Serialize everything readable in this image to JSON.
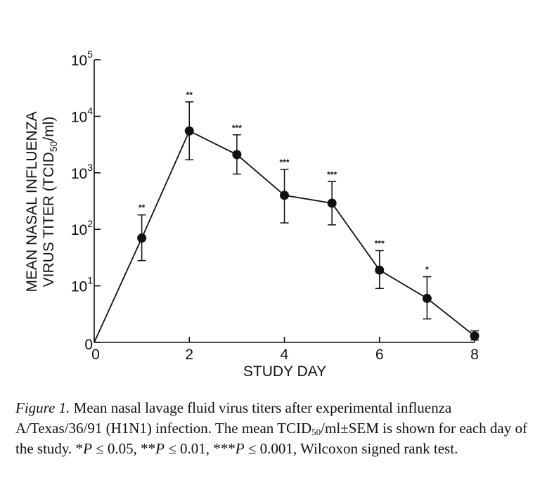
{
  "chart_data": {
    "type": "line",
    "title": "",
    "xlabel": "STUDY DAY",
    "ylabel_line1": "MEAN NASAL INFLUENZA",
    "ylabel_line2_prefix": "VIRUS TITER (TCID",
    "ylabel_line2_sub": "50",
    "ylabel_line2_suffix": "/ml)",
    "y_scale": "log",
    "xlim": [
      0,
      8
    ],
    "ylim_log10": [
      0,
      5
    ],
    "x_ticks": [
      {
        "value": 0,
        "label": "0"
      },
      {
        "value": 2,
        "label": "2"
      },
      {
        "value": 4,
        "label": "4"
      },
      {
        "value": 6,
        "label": "6"
      },
      {
        "value": 8,
        "label": "8"
      }
    ],
    "y_ticks": [
      {
        "log": 0,
        "base": "0",
        "exp": ""
      },
      {
        "log": 1,
        "base": "10",
        "exp": "1"
      },
      {
        "log": 2,
        "base": "10",
        "exp": "2"
      },
      {
        "log": 3,
        "base": "10",
        "exp": "3"
      },
      {
        "log": 4,
        "base": "10",
        "exp": "4"
      },
      {
        "log": 5,
        "base": "10",
        "exp": "5"
      }
    ],
    "grid": false,
    "series": [
      {
        "points": [
          {
            "day": 0,
            "titer": 1,
            "err_low": null,
            "err_high": null,
            "sig": ""
          },
          {
            "day": 1,
            "titer": 70,
            "err_low": 28,
            "err_high": 180,
            "sig": "**"
          },
          {
            "day": 2,
            "titer": 5500,
            "err_low": 1700,
            "err_high": 18000,
            "sig": "**"
          },
          {
            "day": 3,
            "titer": 2100,
            "err_low": 950,
            "err_high": 4700,
            "sig": "***"
          },
          {
            "day": 4,
            "titer": 400,
            "err_low": 130,
            "err_high": 1150,
            "sig": "***"
          },
          {
            "day": 5,
            "titer": 290,
            "err_low": 120,
            "err_high": 700,
            "sig": "***"
          },
          {
            "day": 6,
            "titer": 19,
            "err_low": 9,
            "err_high": 42,
            "sig": "***"
          },
          {
            "day": 7,
            "titer": 6,
            "err_low": 2.6,
            "err_high": 14.5,
            "sig": "*"
          },
          {
            "day": 8,
            "titer": 1.3,
            "err_low": 1.1,
            "err_high": 1.6,
            "sig": ""
          }
        ]
      }
    ]
  },
  "caption": {
    "label": "Figure 1.",
    "text_before_sub": "Mean nasal lavage fluid virus titers after experimental influenza A/Texas/36/91 (H1N1) infection. The mean TCID",
    "sub": "50",
    "text_after_sub": "/ml±SEM is shown for each day of the study. *",
    "p1_var": "P",
    "p1_rest": " ≤ 0.05, **",
    "p2_var": "P",
    "p2_rest": " ≤ 0.01, ***",
    "p3_var": "P",
    "p3_rest": " ≤ 0.001, Wilcoxon signed rank test."
  }
}
